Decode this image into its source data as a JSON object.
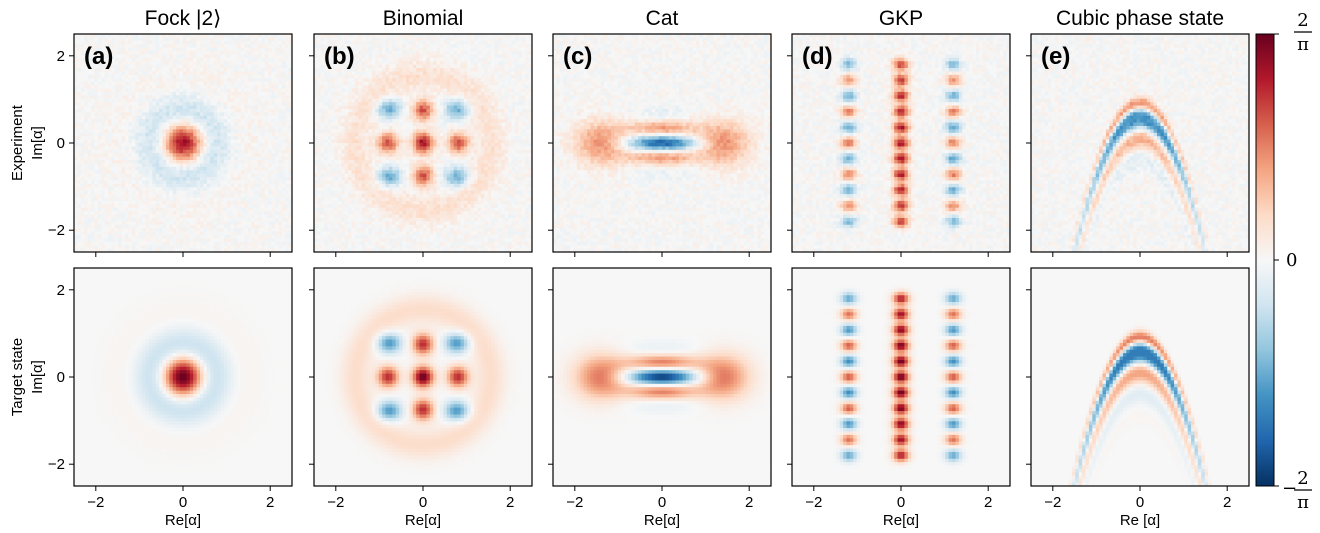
{
  "chart_data": {
    "type": "heatmap",
    "description_of_values": "Wigner function W(alpha) of five bosonic states, experiment (top row) and target (bottom row); colour scale from -2/pi (blue) to +2/pi (red)",
    "columns": [
      {
        "panel_label": "(a)",
        "title": "Fock |2⟩"
      },
      {
        "panel_label": "(b)",
        "title": "Binomial"
      },
      {
        "panel_label": "(c)",
        "title": "Cat"
      },
      {
        "panel_label": "(d)",
        "title": "GKP"
      },
      {
        "panel_label": "(e)",
        "title": "Cubic phase state"
      }
    ],
    "rows": [
      {
        "ylabel_line1": "Experiment",
        "ylabel_line2": "Im[α]"
      },
      {
        "ylabel_line1": "Target state",
        "ylabel_line2": "Im[α]"
      }
    ],
    "xlabels": [
      "Re[α]",
      "Re[α]",
      "Re[α]",
      "Re[α]",
      "Re [α]"
    ],
    "xlim": [
      -2.5,
      2.5
    ],
    "ylim": [
      -2.5,
      2.5
    ],
    "xticks": [
      -2,
      0,
      2
    ],
    "yticks": [
      2,
      0,
      -2
    ],
    "xtick_labels": [
      "−2",
      "0",
      "2"
    ],
    "ytick_labels": [
      "2",
      "0",
      "−2"
    ],
    "colorbar": {
      "colormap": "RdBu_r",
      "min": -0.6366,
      "max": 0.6366,
      "ticks": [
        {
          "value": 0.6366,
          "numerator": "2",
          "denominator": "π",
          "sign": ""
        },
        {
          "value": 0,
          "text": "0"
        },
        {
          "value": -0.6366,
          "numerator": "2",
          "denominator": "π",
          "sign": "−"
        }
      ],
      "colors": {
        "min": "#053061",
        "mid": "#f7f7f7",
        "max": "#67001f"
      }
    },
    "grid": false
  }
}
